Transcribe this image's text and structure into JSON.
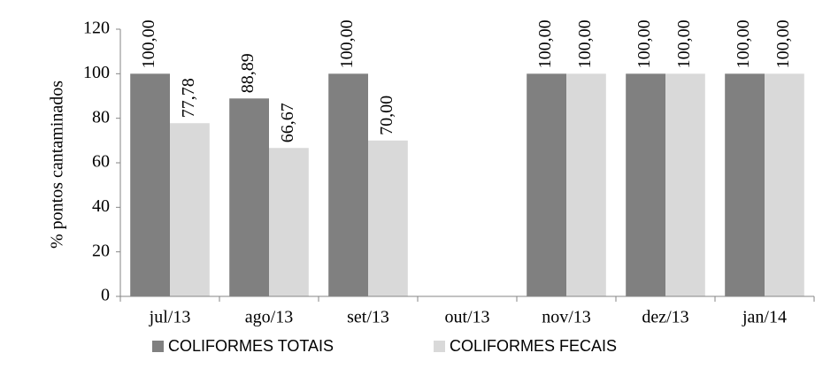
{
  "chart_data": {
    "type": "bar",
    "categories": [
      "jul/13",
      "ago/13",
      "set/13",
      "out/13",
      "nov/13",
      "dez/13",
      "jan/14"
    ],
    "series": [
      {
        "name": "COLIFORMES TOTAIS",
        "color": "#808080",
        "values": [
          100,
          88.89,
          100,
          null,
          100,
          100,
          100
        ],
        "value_labels": [
          "100,00",
          "88,89",
          "100,00",
          null,
          "100,00",
          "100,00",
          "100,00"
        ]
      },
      {
        "name": "COLIFORMES FECAIS",
        "color": "#d9d9d9",
        "values": [
          77.78,
          66.67,
          70,
          null,
          100,
          100,
          100
        ],
        "value_labels": [
          "77,78",
          "66,67",
          "70,00",
          null,
          "100,00",
          "100,00",
          "100,00"
        ]
      }
    ],
    "y_label": "% pontos cantaminados",
    "ylim": [
      0,
      120
    ],
    "yticks": [
      0,
      20,
      40,
      60,
      80,
      100,
      120
    ],
    "grid": false,
    "legend": "bottom"
  }
}
